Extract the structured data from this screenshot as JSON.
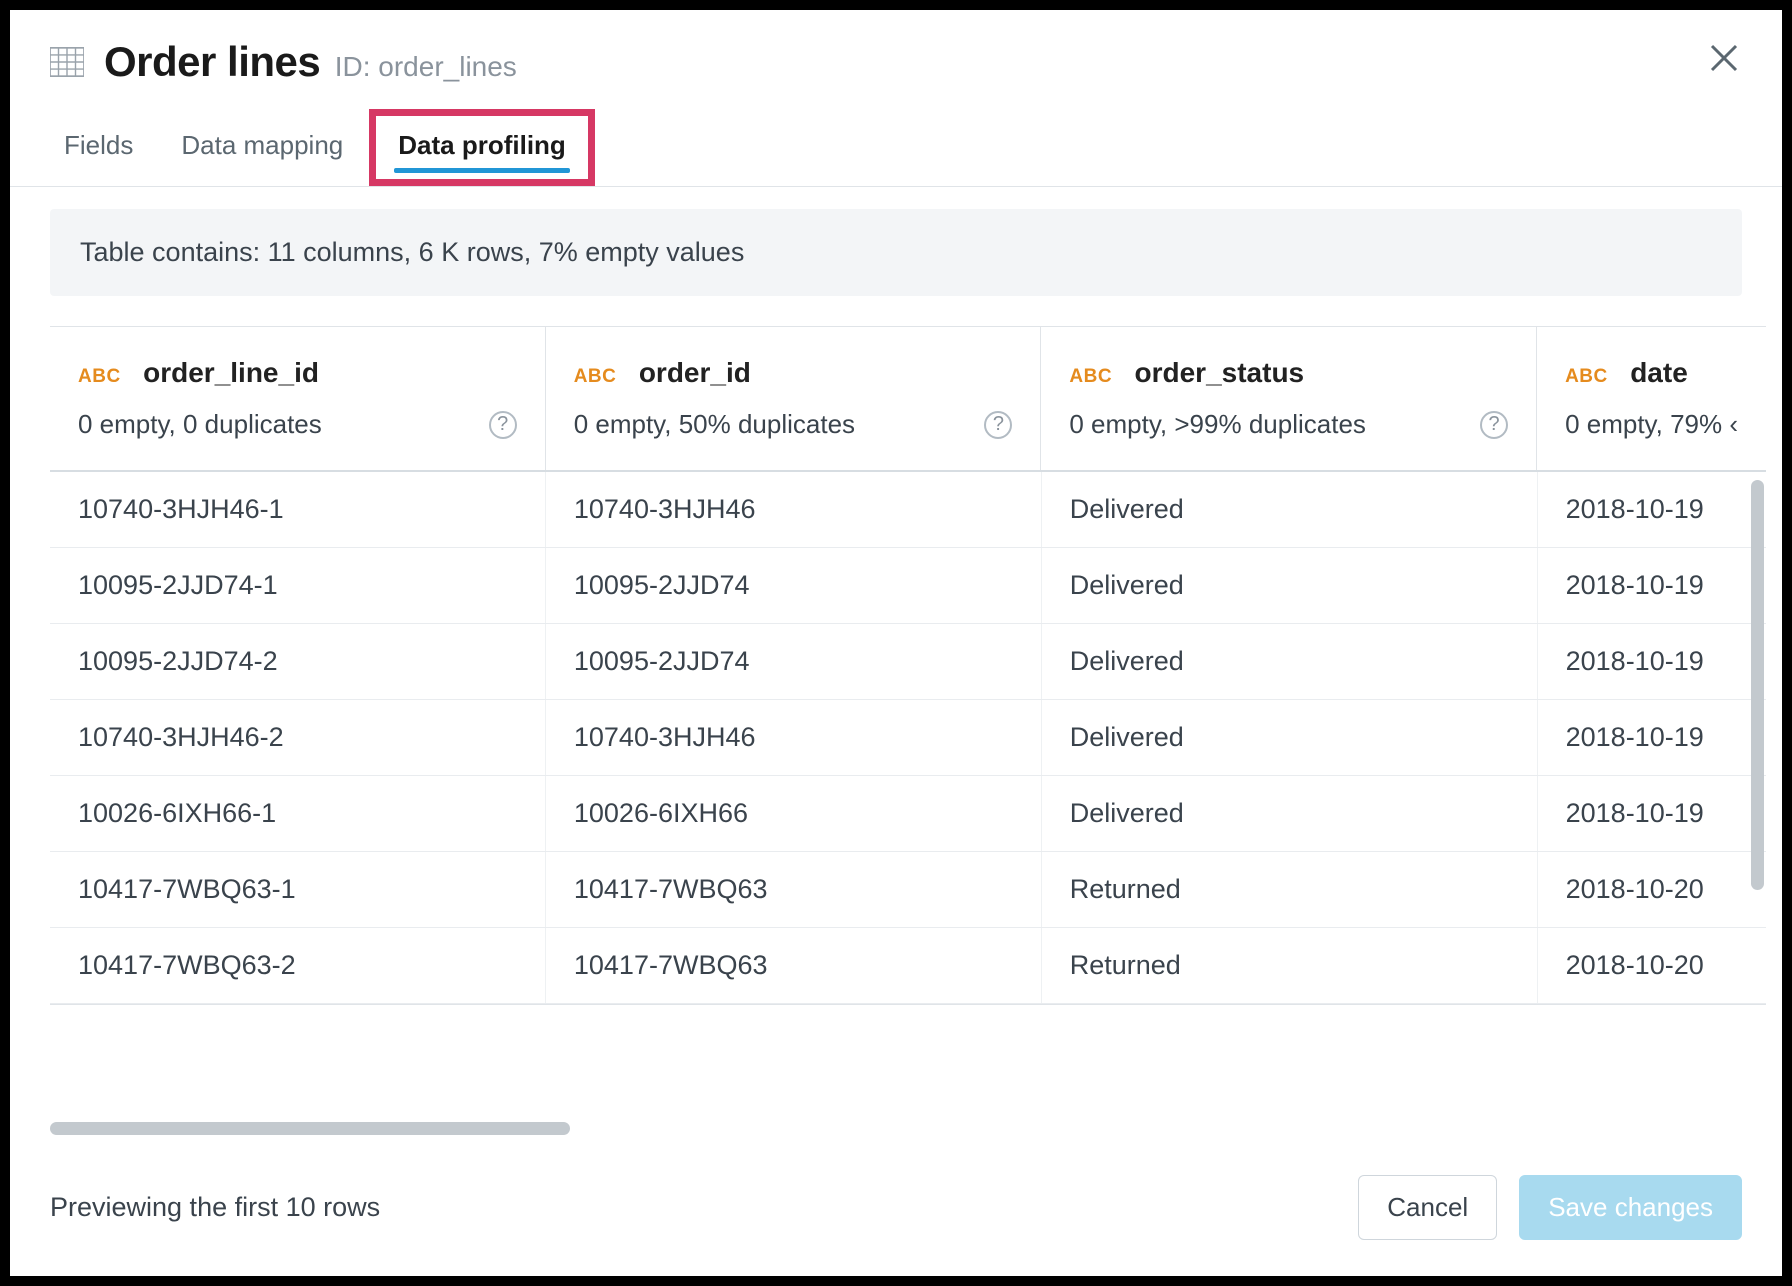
{
  "header": {
    "title": "Order lines",
    "id_prefix": "ID:",
    "id_value": "order_lines"
  },
  "tabs": [
    {
      "label": "Fields",
      "active": false
    },
    {
      "label": "Data mapping",
      "active": false
    },
    {
      "label": "Data profiling",
      "active": true,
      "highlighted": true
    }
  ],
  "summary": "Table contains: 11 columns, 6 K rows, 7% empty values",
  "columns": [
    {
      "type": "ABC",
      "name": "order_line_id",
      "stats": "0 empty, 0 duplicates"
    },
    {
      "type": "ABC",
      "name": "order_id",
      "stats": "0 empty, 50% duplicates"
    },
    {
      "type": "ABC",
      "name": "order_status",
      "stats": "0 empty, >99% duplicates"
    },
    {
      "type": "ABC",
      "name": "date",
      "stats": "0 empty, 79% ‹"
    }
  ],
  "rows": [
    [
      "10740-3HJH46-1",
      "10740-3HJH46",
      "Delivered",
      "2018-10-19"
    ],
    [
      "10095-2JJD74-1",
      "10095-2JJD74",
      "Delivered",
      "2018-10-19"
    ],
    [
      "10095-2JJD74-2",
      "10095-2JJD74",
      "Delivered",
      "2018-10-19"
    ],
    [
      "10740-3HJH46-2",
      "10740-3HJH46",
      "Delivered",
      "2018-10-19"
    ],
    [
      "10026-6IXH66-1",
      "10026-6IXH66",
      "Delivered",
      "2018-10-19"
    ],
    [
      "10417-7WBQ63-1",
      "10417-7WBQ63",
      "Returned",
      "2018-10-20"
    ],
    [
      "10417-7WBQ63-2",
      "10417-7WBQ63",
      "Returned",
      "2018-10-20"
    ]
  ],
  "footer": {
    "preview_text": "Previewing the first 10 rows",
    "cancel_label": "Cancel",
    "save_label": "Save changes"
  },
  "colors": {
    "accent": "#2196d6",
    "highlight_border": "#d63864",
    "type_badge": "#e58b1e",
    "primary_btn": "#a8daef"
  }
}
